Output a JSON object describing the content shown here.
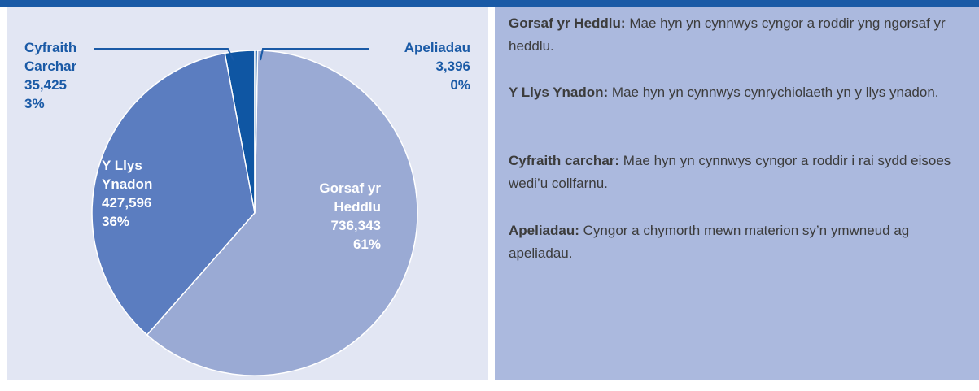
{
  "chart_data": {
    "type": "pie",
    "categories": [
      "Apeliadau",
      "Gorsaf yr Heddlu",
      "Y Llys Ynadon",
      "Cyfraith Carchar"
    ],
    "values": [
      3396,
      736343,
      427596,
      35425
    ],
    "value_labels": [
      "3,396",
      "736,343",
      "427,596",
      "35,425"
    ],
    "percent_labels": [
      "0%",
      "61%",
      "36%",
      "3%"
    ],
    "colors": [
      "#0f56a3",
      "#9aaad4",
      "#5b7dc0",
      "#0f56a3"
    ]
  },
  "definitions": [
    {
      "term": "Gorsaf yr Heddlu:",
      "text": "Mae hyn yn cynnwys cyngor a roddir yng ngorsaf yr heddlu."
    },
    {
      "term": "Y Llys Ynadon:",
      "text": "Mae hyn yn cynnwys cynrychiolaeth yn y llys ynadon."
    },
    {
      "term": "Cyfraith carchar:",
      "text": "Mae hyn yn cynnwys cyngor a roddir i rai sydd eisoes wedi’u collfarnu."
    },
    {
      "term": "Apeliadau:",
      "text": "Cyngor a chymorth mewn materion sy’n ymwneud ag apeliadau."
    }
  ]
}
